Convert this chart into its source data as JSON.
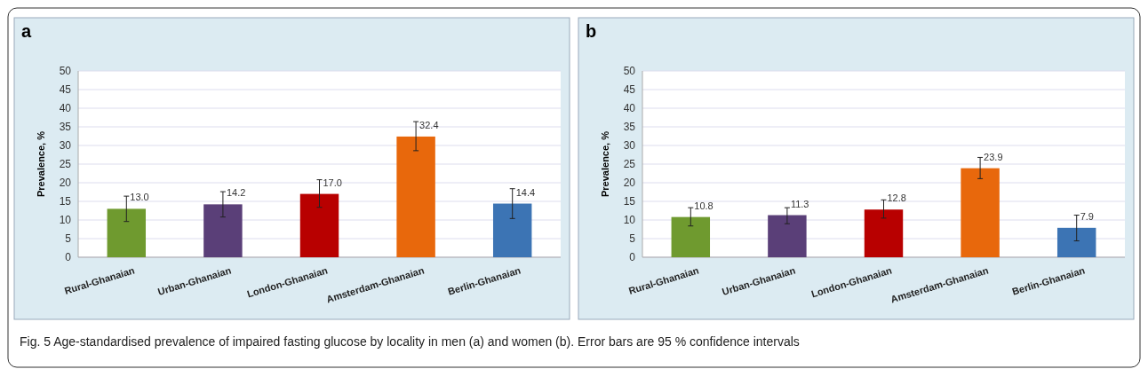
{
  "chart_data": [
    {
      "type": "bar",
      "title": "a",
      "ylabel": "Prevalence, %",
      "categories": [
        "Rural-Ghanaian",
        "Urban-Ghanaian",
        "London-Ghanaian",
        "Amsterdam-Ghanaian",
        "Berlin-Ghanaian"
      ],
      "values": [
        13.0,
        14.2,
        17.0,
        32.4,
        14.4
      ],
      "colors": [
        "#6f9a2f",
        "#5a3f78",
        "#b80000",
        "#e8680c",
        "#3c74b4"
      ],
      "errors": [
        [
          9.6,
          16.4
        ],
        [
          10.8,
          17.6
        ],
        [
          13.4,
          20.8
        ],
        [
          28.6,
          36.4
        ],
        [
          10.4,
          18.4
        ]
      ],
      "value_labels": [
        "13.0",
        "14.2",
        "17.0",
        "32.4",
        "14.4"
      ],
      "ylim": [
        0,
        50
      ],
      "yticks": [
        0,
        5,
        10,
        15,
        20,
        25,
        30,
        35,
        40,
        45,
        50
      ],
      "grid": "y",
      "annotations": [
        "Fig. 5 Age-standardised prevalence of impaired fasting glucose by locality in men (a) and women (b). Error bars are 95 % confidence intervals"
      ]
    },
    {
      "type": "bar",
      "title": "b",
      "ylabel": "Prevalence, %",
      "categories": [
        "Rural-Ghanaian",
        "Urban-Ghanaian",
        "London-Ghanaian",
        "Amsterdam-Ghanaian",
        "Berlin-Ghanaian"
      ],
      "values": [
        10.8,
        11.3,
        12.8,
        23.9,
        7.9
      ],
      "colors": [
        "#6f9a2f",
        "#5a3f78",
        "#b80000",
        "#e8680c",
        "#3c74b4"
      ],
      "errors": [
        [
          8.4,
          13.3
        ],
        [
          9.0,
          13.3
        ],
        [
          10.5,
          15.4
        ],
        [
          21.1,
          26.8
        ],
        [
          4.4,
          11.3
        ]
      ],
      "value_labels": [
        "10.8",
        "11.3",
        "12.8",
        "23.9",
        "7.9"
      ],
      "ylim": [
        0,
        50
      ],
      "yticks": [
        0,
        5,
        10,
        15,
        20,
        25,
        30,
        35,
        40,
        45,
        50
      ],
      "grid": "y"
    }
  ]
}
